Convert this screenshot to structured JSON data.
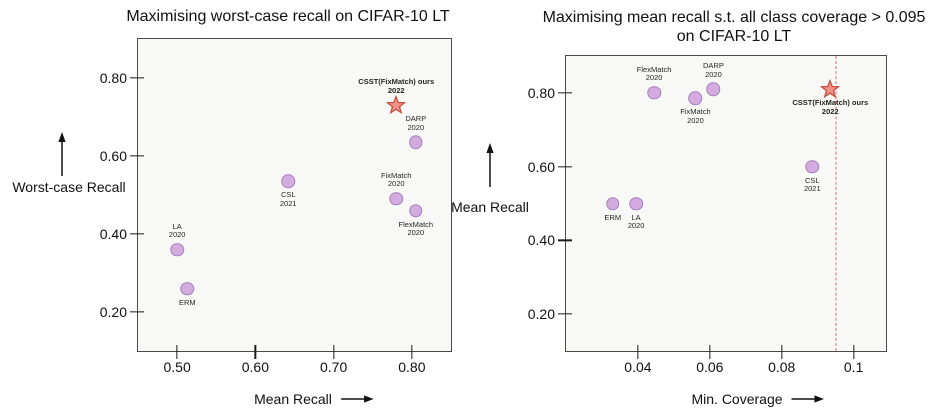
{
  "figure": {
    "background": "#ffffff"
  },
  "colors": {
    "figure_bg": "#ffffff",
    "plot_bg": "#f8f8f6",
    "plot_border": "#4a4a4a",
    "text": "#111111",
    "circle_fill": "#d3abdf",
    "circle_stroke": "#a77fc0",
    "star_fill": "#f0948a",
    "star_stroke": "#c94c3e",
    "constraint_line": "#d4766a"
  },
  "chart_data": [
    {
      "type": "scatter",
      "title": "Maximising worst-case recall on CIFAR-10 LT",
      "xlabel": "Mean Recall",
      "ylabel": "Worst-case Recall",
      "xlim": [
        0.45,
        0.85
      ],
      "ylim": [
        0.1,
        0.9
      ],
      "xticks": [
        0.5,
        0.6,
        0.7,
        0.8
      ],
      "xtick_labels": [
        "0.50",
        "0.60",
        "0.70",
        "0.80"
      ],
      "yticks": [
        0.2,
        0.4,
        0.6,
        0.8
      ],
      "ytick_labels": [
        "0.20",
        "0.40",
        "0.60",
        "0.80"
      ],
      "grid": false,
      "legend": null,
      "points": [
        {
          "method": "ERM",
          "label_lines": [
            "ERM"
          ],
          "x": 0.513,
          "y": 0.26,
          "marker": "circle",
          "label_pos": "below",
          "bold": false
        },
        {
          "method": "LA 2020",
          "label_lines": [
            "LA",
            "2020"
          ],
          "x": 0.5,
          "y": 0.36,
          "marker": "circle",
          "label_pos": "above",
          "bold": false
        },
        {
          "method": "CSL 2021",
          "label_lines": [
            "CSL",
            "2021"
          ],
          "x": 0.642,
          "y": 0.535,
          "marker": "circle",
          "label_pos": "below",
          "bold": false
        },
        {
          "method": "FixMatch 2020",
          "label_lines": [
            "FixMatch",
            "2020"
          ],
          "x": 0.78,
          "y": 0.49,
          "marker": "circle",
          "label_pos": "above",
          "bold": false
        },
        {
          "method": "FlexMatch 2020",
          "label_lines": [
            "FlexMatch",
            "2020"
          ],
          "x": 0.805,
          "y": 0.46,
          "marker": "circle",
          "label_pos": "below",
          "bold": false
        },
        {
          "method": "DARP 2020",
          "label_lines": [
            "DARP",
            "2020"
          ],
          "x": 0.805,
          "y": 0.635,
          "marker": "circle",
          "label_pos": "above",
          "bold": false
        },
        {
          "method": "CSST(FixMatch) ours 2022",
          "label_lines": [
            "CSST(FixMatch) ours",
            "2022"
          ],
          "x": 0.78,
          "y": 0.73,
          "marker": "star",
          "label_pos": "above",
          "bold": true
        }
      ]
    },
    {
      "type": "scatter",
      "title": "Maximising mean recall s.t. all class coverage > 0.095 on CIFAR-10 LT",
      "title_lines": [
        "Maximising mean recall s.t. all class coverage > 0.095",
        "on CIFAR-10 LT"
      ],
      "xlabel": "Min. Coverage",
      "ylabel": "Mean Recall",
      "xlim": [
        0.02,
        0.109
      ],
      "ylim": [
        0.1,
        0.9
      ],
      "xticks": [
        0.04,
        0.06,
        0.08,
        0.1
      ],
      "xtick_labels": [
        "0.04",
        "0.06",
        "0.08",
        "0.1"
      ],
      "yticks": [
        0.2,
        0.4,
        0.6,
        0.8
      ],
      "ytick_labels": [
        "0.20",
        "0.40",
        "0.60",
        "0.80"
      ],
      "grid": false,
      "legend": null,
      "constraint_line": {
        "x": 0.095,
        "style": "dashed"
      },
      "points": [
        {
          "method": "ERM",
          "label_lines": [
            "ERM"
          ],
          "x": 0.033,
          "y": 0.5,
          "marker": "circle",
          "label_pos": "below",
          "bold": false
        },
        {
          "method": "LA 2020",
          "label_lines": [
            "LA",
            "2020"
          ],
          "x": 0.0395,
          "y": 0.5,
          "marker": "circle",
          "label_pos": "below",
          "bold": false
        },
        {
          "method": "FlexMatch 2020",
          "label_lines": [
            "FlexMatch",
            "2020"
          ],
          "x": 0.0445,
          "y": 0.8,
          "marker": "circle",
          "label_pos": "above",
          "bold": false
        },
        {
          "method": "FixMatch 2020",
          "label_lines": [
            "FixMatch",
            "2020"
          ],
          "x": 0.056,
          "y": 0.785,
          "marker": "circle",
          "label_pos": "below",
          "bold": false
        },
        {
          "method": "DARP 2020",
          "label_lines": [
            "DARP",
            "2020"
          ],
          "x": 0.061,
          "y": 0.81,
          "marker": "circle",
          "label_pos": "above",
          "bold": false
        },
        {
          "method": "CSL 2021",
          "label_lines": [
            "CSL",
            "2021"
          ],
          "x": 0.0885,
          "y": 0.6,
          "marker": "circle",
          "label_pos": "below",
          "bold": false
        },
        {
          "method": "CSST(FixMatch) ours 2022",
          "label_lines": [
            "CSST(FixMatch) ours",
            "2022"
          ],
          "x": 0.0935,
          "y": 0.81,
          "marker": "star",
          "label_pos": "below",
          "bold": true
        }
      ]
    }
  ]
}
